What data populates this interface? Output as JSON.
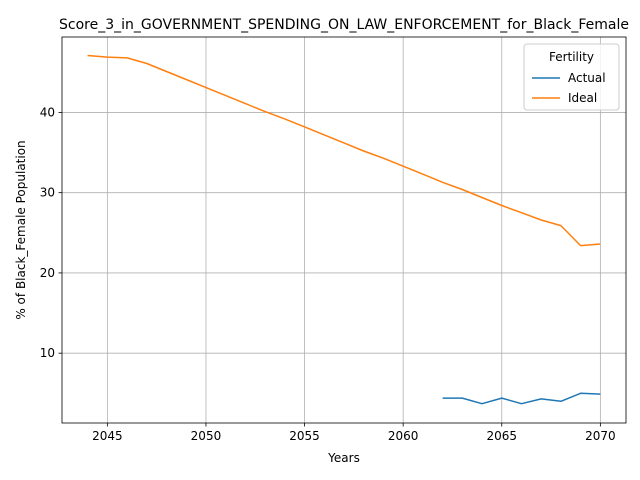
{
  "chart_data": {
    "type": "line",
    "title": "Score_3_in_GOVERNMENT_SPENDING_ON_LAW_ENFORCEMENT_for_Black_Female",
    "xlabel": "Years",
    "ylabel": "% of Black_Female Population",
    "xlim": [
      2042.7,
      2071.3
    ],
    "ylim": [
      1.3,
      49.4
    ],
    "xticks": [
      2045,
      2050,
      2055,
      2060,
      2065,
      2070
    ],
    "yticks": [
      10,
      20,
      30,
      40
    ],
    "grid": true,
    "legend": {
      "title": "Fertility",
      "placement": "top-right"
    },
    "series": [
      {
        "name": "Actual",
        "color": "#1f77b4",
        "x": [
          2062,
          2063,
          2064,
          2065,
          2066,
          2067,
          2068,
          2069,
          2070
        ],
        "y": [
          4.4,
          4.4,
          3.7,
          4.4,
          3.7,
          4.3,
          4.0,
          5.0,
          4.9
        ]
      },
      {
        "name": "Ideal",
        "color": "#ff7f0e",
        "x": [
          2044,
          2045,
          2046,
          2047,
          2048,
          2049,
          2050,
          2051,
          2052,
          2053,
          2054,
          2055,
          2056,
          2057,
          2058,
          2059,
          2060,
          2061,
          2062,
          2063,
          2064,
          2065,
          2066,
          2067,
          2068,
          2069,
          2070
        ],
        "y": [
          47.1,
          46.9,
          46.8,
          46.1,
          45.1,
          44.1,
          43.1,
          42.1,
          41.1,
          40.1,
          39.2,
          38.2,
          37.2,
          36.2,
          35.2,
          34.3,
          33.3,
          32.3,
          31.3,
          30.4,
          29.4,
          28.4,
          27.5,
          26.6,
          25.9,
          23.4,
          23.6
        ]
      }
    ]
  }
}
